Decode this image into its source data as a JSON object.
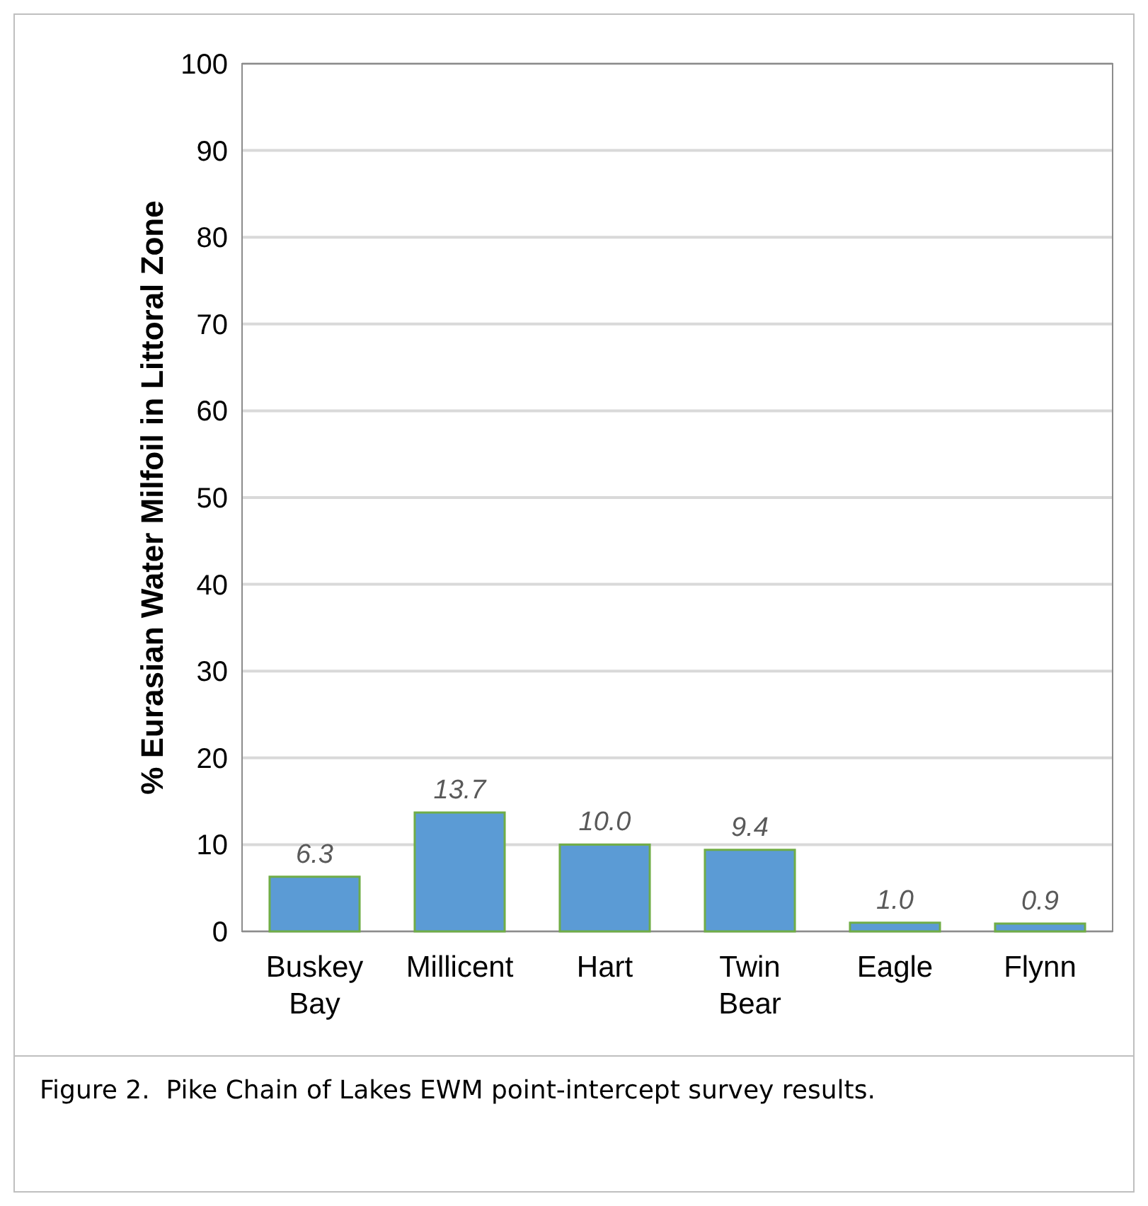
{
  "chart_data": {
    "type": "bar",
    "ylabel": "% Eurasian Water Milfoil in Littoral Zone",
    "categories": [
      "Buskey Bay",
      "Millicent",
      "Hart",
      "Twin Bear",
      "Eagle",
      "Flynn"
    ],
    "values": [
      6.3,
      13.7,
      10.0,
      9.4,
      1.0,
      0.9
    ],
    "value_labels": [
      "6.3",
      "13.7",
      "10.0",
      "9.4",
      "1.0",
      "0.9"
    ],
    "color": "#5b9bd5",
    "ylim": [
      0,
      100
    ],
    "yticks": [
      0,
      10,
      20,
      30,
      40,
      50,
      60,
      70,
      80,
      90,
      100
    ],
    "grid": "y",
    "annotations": [
      "Figure 2.  Pike Chain of Lakes EWM point-intercept survey results."
    ]
  }
}
